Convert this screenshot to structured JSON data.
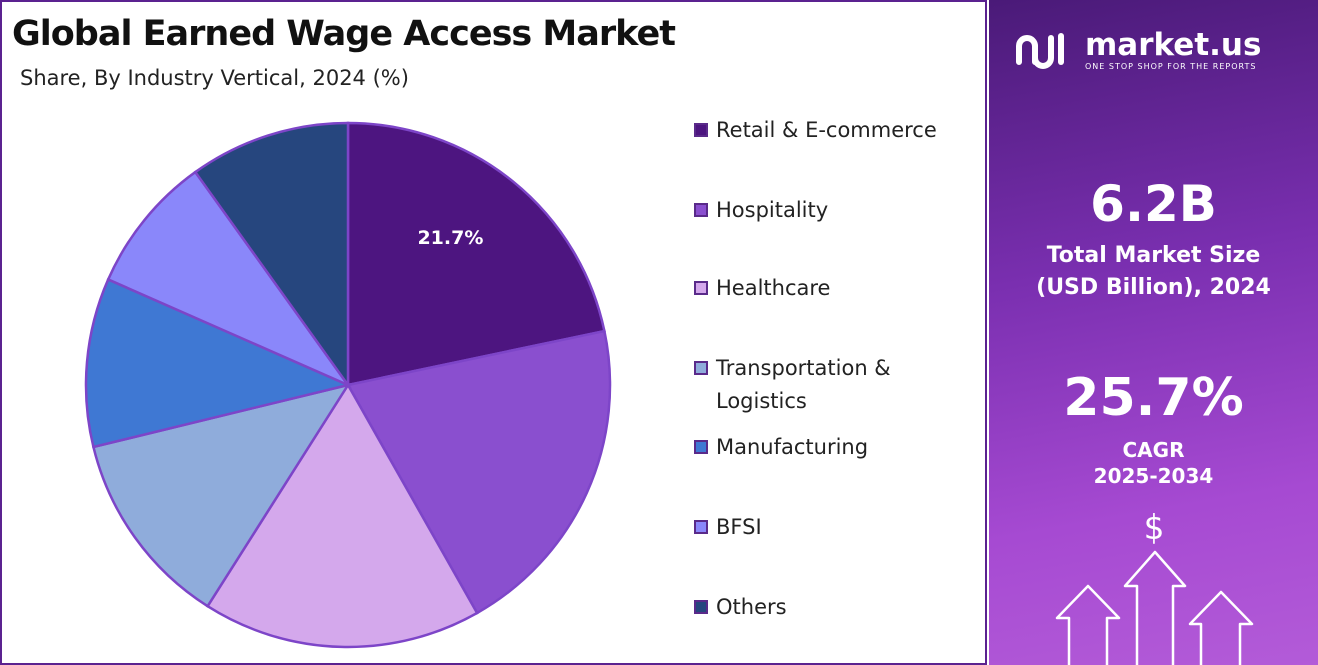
{
  "header": {
    "title": "Global Earned Wage Access Market",
    "subtitle": "Share, By Industry Vertical, 2024 (%)"
  },
  "chart_data": {
    "type": "pie",
    "title": "Global Earned Wage Access Market",
    "subtitle": "Share, By Industry Vertical, 2024 (%)",
    "categories": [
      "Retail & E-commerce",
      "Hospitality",
      "Healthcare",
      "Transportation & Logistics",
      "Manufacturing",
      "BFSI",
      "Others"
    ],
    "values": [
      21.7,
      20.1,
      17.2,
      12.2,
      10.4,
      8.5,
      9.9
    ],
    "colors": [
      "#4d1580",
      "#8a4fcf",
      "#d4a8ec",
      "#8facdb",
      "#3f78d3",
      "#8a87fa",
      "#26467e"
    ],
    "data_labels": [
      "21.7%",
      "",
      "",
      "",
      "",
      "",
      ""
    ],
    "legend_position": "right"
  },
  "legend": {
    "items": [
      {
        "label": "Retail & E-commerce",
        "color": "#4d1580"
      },
      {
        "label": "Hospitality",
        "color": "#8a4fcf"
      },
      {
        "label": "Healthcare",
        "color": "#d4a8ec"
      },
      {
        "label": "Transportation & Logistics",
        "color": "#8facdb"
      },
      {
        "label": "Manufacturing",
        "color": "#3f78d3"
      },
      {
        "label": "BFSI",
        "color": "#8a87fa"
      },
      {
        "label": "Others",
        "color": "#26467e"
      }
    ]
  },
  "sidebar": {
    "brand": "market.us",
    "tagline": "ONE STOP SHOP FOR THE REPORTS",
    "market_size": {
      "value": "6.2B",
      "label_line1": "Total Market Size",
      "label_line2": "(USD Billion), 2024"
    },
    "cagr": {
      "value": "25.7%",
      "label_line1": "CAGR",
      "label_line2": "2025-2034"
    },
    "currency_symbol": "$",
    "icons": [
      "logo-icon",
      "growth-arrows-icon"
    ]
  }
}
